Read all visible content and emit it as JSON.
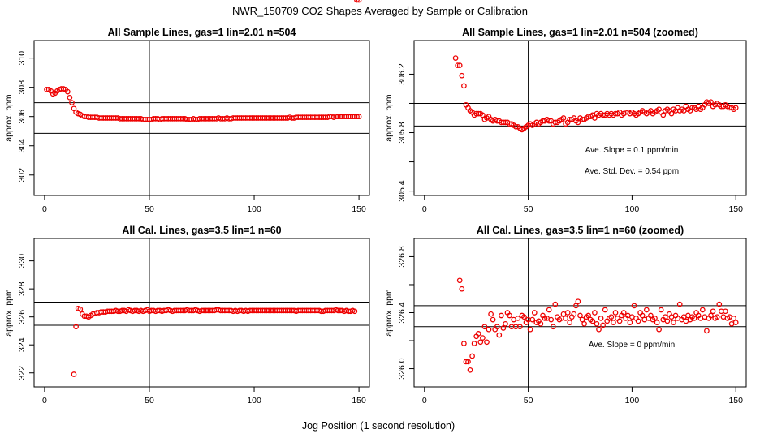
{
  "figure": {
    "title": "NWR_150709  CO2 Shapes Averaged by Sample or Calibration",
    "xlabel": "Jog Position (1 second resolution)"
  },
  "chart_data": [
    {
      "id": "p1",
      "type": "scatter",
      "title": "All Sample Lines, gas=1 lin=2.01 n=504",
      "ylabel": "approx. ppm",
      "xlim": [
        -5,
        155
      ],
      "ylim": [
        300.6,
        311.2
      ],
      "xticks": [
        0,
        50,
        100,
        150
      ],
      "yticks": [
        302,
        304,
        306,
        308,
        310
      ],
      "vline": 50,
      "hlines": [
        306.95,
        304.85
      ],
      "annotations": [],
      "points_x": [
        1,
        2,
        3,
        4,
        5,
        6,
        7,
        8,
        9,
        10,
        11,
        12,
        13,
        14,
        15,
        16,
        17,
        18,
        19,
        20,
        21,
        22,
        23,
        24,
        25,
        26,
        27,
        28,
        29,
        30,
        31,
        32,
        33,
        34,
        35,
        36,
        37,
        38,
        39,
        40,
        41,
        42,
        43,
        44,
        45,
        46,
        47,
        48,
        49,
        50,
        51,
        52,
        53,
        54,
        55,
        56,
        57,
        58,
        59,
        60,
        61,
        62,
        63,
        64,
        65,
        66,
        67,
        68,
        69,
        70,
        71,
        72,
        73,
        74,
        75,
        76,
        77,
        78,
        79,
        80,
        81,
        82,
        83,
        84,
        85,
        86,
        87,
        88,
        89,
        90,
        91,
        92,
        93,
        94,
        95,
        96,
        97,
        98,
        99,
        100,
        101,
        102,
        103,
        104,
        105,
        106,
        107,
        108,
        109,
        110,
        111,
        112,
        113,
        114,
        115,
        116,
        117,
        118,
        119,
        120,
        121,
        122,
        123,
        124,
        125,
        126,
        127,
        128,
        129,
        130,
        131,
        132,
        133,
        134,
        135,
        136,
        137,
        138,
        139,
        140,
        141,
        142,
        143,
        144,
        145,
        146,
        147,
        148,
        149,
        150
      ],
      "points_y": [
        307.85,
        307.85,
        307.75,
        307.55,
        307.6,
        307.75,
        307.85,
        307.9,
        307.9,
        307.85,
        307.7,
        307.3,
        306.95,
        306.55,
        306.3,
        306.2,
        306.15,
        306.05,
        306,
        306,
        305.95,
        305.95,
        305.95,
        305.95,
        305.95,
        305.9,
        305.9,
        305.9,
        305.9,
        305.9,
        305.9,
        305.9,
        305.9,
        305.9,
        305.9,
        305.85,
        305.85,
        305.85,
        305.85,
        305.85,
        305.85,
        305.85,
        305.85,
        305.85,
        305.85,
        305.85,
        305.8,
        305.8,
        305.8,
        305.8,
        305.8,
        305.85,
        305.85,
        305.85,
        305.8,
        305.85,
        305.85,
        305.85,
        305.85,
        305.85,
        305.85,
        305.85,
        305.85,
        305.85,
        305.85,
        305.85,
        305.85,
        305.8,
        305.8,
        305.8,
        305.85,
        305.8,
        305.8,
        305.85,
        305.85,
        305.85,
        305.85,
        305.85,
        305.85,
        305.85,
        305.85,
        305.85,
        305.9,
        305.85,
        305.85,
        305.85,
        305.9,
        305.85,
        305.85,
        305.9,
        305.9,
        305.9,
        305.9,
        305.9,
        305.9,
        305.9,
        305.9,
        305.9,
        305.9,
        305.9,
        305.9,
        305.9,
        305.9,
        305.9,
        305.9,
        305.9,
        305.9,
        305.9,
        305.9,
        305.9,
        305.9,
        305.9,
        305.9,
        305.9,
        305.9,
        305.9,
        305.95,
        305.9,
        305.9,
        305.95,
        305.95,
        305.95,
        305.95,
        305.95,
        305.95,
        305.95,
        305.95,
        305.95,
        305.95,
        305.95,
        305.95,
        305.95,
        305.95,
        305.95,
        305.95,
        306,
        306,
        305.95,
        306,
        306,
        306,
        306,
        306,
        306,
        306,
        306,
        306,
        306,
        306,
        306
      ]
    },
    {
      "id": "p2",
      "type": "scatter",
      "title": "All Sample Lines, gas=1 lin=2.01 n=504 (zoomed)",
      "ylabel": "approx. ppm",
      "xlim": [
        -5,
        155
      ],
      "ylim": [
        305.37,
        306.43
      ],
      "xticks": [
        0,
        50,
        100,
        150
      ],
      "yticks": [
        305.4,
        305.6,
        305.8,
        306.0,
        306.2
      ],
      "ytick_labels": [
        "305.4",
        "",
        "305.8",
        "",
        "306.2"
      ],
      "vline": 50,
      "hlines": [
        306.0,
        305.845
      ],
      "annotations": [
        "Ave. Slope = 0.1  ppm/min",
        "Ave. Std. Dev. =  0.54  ppm"
      ],
      "points_x": [
        15,
        16,
        17,
        18,
        19,
        20,
        21,
        22,
        23,
        24,
        25,
        26,
        27,
        28,
        29,
        30,
        31,
        32,
        33,
        34,
        35,
        36,
        37,
        38,
        39,
        40,
        41,
        42,
        43,
        44,
        45,
        46,
        47,
        48,
        49,
        50,
        51,
        52,
        53,
        54,
        55,
        56,
        57,
        58,
        59,
        60,
        61,
        62,
        63,
        64,
        65,
        66,
        67,
        68,
        69,
        70,
        71,
        72,
        73,
        74,
        75,
        76,
        77,
        78,
        79,
        80,
        81,
        82,
        83,
        84,
        85,
        86,
        87,
        88,
        89,
        90,
        91,
        92,
        93,
        94,
        95,
        96,
        97,
        98,
        99,
        100,
        101,
        102,
        103,
        104,
        105,
        106,
        107,
        108,
        109,
        110,
        111,
        112,
        113,
        114,
        115,
        116,
        117,
        118,
        119,
        120,
        121,
        122,
        123,
        124,
        125,
        126,
        127,
        128,
        129,
        130,
        131,
        132,
        133,
        134,
        135,
        136,
        137,
        138,
        139,
        140,
        141,
        142,
        143,
        144,
        145,
        146,
        147,
        148,
        149,
        150
      ],
      "points_y": [
        306.31,
        306.26,
        306.26,
        306.19,
        306.12,
        305.99,
        305.97,
        305.95,
        305.94,
        305.92,
        305.93,
        305.93,
        305.93,
        305.92,
        305.89,
        305.9,
        305.91,
        305.89,
        305.88,
        305.89,
        305.88,
        305.88,
        305.87,
        305.87,
        305.87,
        305.87,
        305.86,
        305.86,
        305.85,
        305.84,
        305.84,
        305.83,
        305.82,
        305.83,
        305.84,
        305.85,
        305.86,
        305.85,
        305.86,
        305.87,
        305.86,
        305.87,
        305.88,
        305.88,
        305.89,
        305.88,
        305.88,
        305.86,
        305.87,
        305.87,
        305.88,
        305.89,
        305.9,
        305.86,
        305.87,
        305.89,
        305.89,
        305.9,
        305.88,
        305.87,
        305.9,
        305.89,
        305.89,
        305.9,
        305.91,
        305.91,
        305.92,
        305.9,
        305.93,
        305.92,
        305.93,
        305.92,
        305.92,
        305.93,
        305.92,
        305.93,
        305.92,
        305.93,
        305.93,
        305.94,
        305.92,
        305.93,
        305.94,
        305.94,
        305.93,
        305.94,
        305.93,
        305.92,
        305.93,
        305.94,
        305.95,
        305.94,
        305.93,
        305.94,
        305.95,
        305.93,
        305.94,
        305.95,
        305.96,
        305.94,
        305.92,
        305.95,
        305.96,
        305.95,
        305.93,
        305.96,
        305.95,
        305.97,
        305.95,
        305.96,
        305.95,
        305.98,
        305.96,
        305.95,
        305.97,
        305.97,
        305.96,
        305.98,
        305.96,
        305.97,
        305.99,
        306.01,
        306.0,
        306.01,
        305.98,
        305.99,
        306.0,
        305.99,
        305.98,
        305.98,
        305.99,
        305.98,
        305.97,
        305.97,
        305.96,
        305.97
      ]
    },
    {
      "id": "p3",
      "type": "scatter",
      "title": "All Cal. Lines, gas=3.5 lin=1 n=60",
      "ylabel": "approx. ppm",
      "xlim": [
        -5,
        155
      ],
      "ylim": [
        321.0,
        331.6
      ],
      "xticks": [
        0,
        50,
        100,
        150
      ],
      "yticks": [
        322,
        324,
        326,
        328,
        330
      ],
      "vline": 50,
      "hlines": [
        327.05,
        325.4
      ],
      "annotations": [],
      "points_x": [
        14,
        15,
        16,
        17,
        18,
        19,
        20,
        21,
        22,
        23,
        24,
        25,
        26,
        27,
        28,
        29,
        30,
        31,
        32,
        33,
        34,
        35,
        36,
        37,
        38,
        39,
        40,
        41,
        42,
        43,
        44,
        45,
        46,
        47,
        48,
        49,
        50,
        51,
        52,
        53,
        54,
        55,
        56,
        57,
        58,
        59,
        60,
        61,
        62,
        63,
        64,
        65,
        66,
        67,
        68,
        69,
        70,
        71,
        72,
        73,
        74,
        75,
        76,
        77,
        78,
        79,
        80,
        81,
        82,
        83,
        84,
        85,
        86,
        87,
        88,
        89,
        90,
        91,
        92,
        93,
        94,
        95,
        96,
        97,
        98,
        99,
        100,
        101,
        102,
        103,
        104,
        105,
        106,
        107,
        108,
        109,
        110,
        111,
        112,
        113,
        114,
        115,
        116,
        117,
        118,
        119,
        120,
        121,
        122,
        123,
        124,
        125,
        126,
        127,
        128,
        129,
        130,
        131,
        132,
        133,
        134,
        135,
        136,
        137,
        138,
        139,
        140,
        141,
        142,
        143,
        144,
        145,
        146,
        147,
        148,
        149,
        150
      ],
      "points_y": [
        321.9,
        325.3,
        326.6,
        326.55,
        326.2,
        326.05,
        326.05,
        326.0,
        326.1,
        326.2,
        326.25,
        326.3,
        326.3,
        326.35,
        326.35,
        326.35,
        326.4,
        326.4,
        326.4,
        326.4,
        326.45,
        326.4,
        326.4,
        326.45,
        326.45,
        326.4,
        326.5,
        326.45,
        326.4,
        326.45,
        326.45,
        326.4,
        326.45,
        326.4,
        326.45,
        326.5,
        326.4,
        326.45,
        326.45,
        326.4,
        326.45,
        326.45,
        326.4,
        326.45,
        326.45,
        326.5,
        326.45,
        326.4,
        326.45,
        326.45,
        326.45,
        326.45,
        326.45,
        326.45,
        326.5,
        326.45,
        326.45,
        326.45,
        326.5,
        326.45,
        326.4,
        326.45,
        326.45,
        326.45,
        326.45,
        326.45,
        326.45,
        326.45,
        326.5,
        326.5,
        326.45,
        326.45,
        326.45,
        326.45,
        326.45,
        326.45,
        326.4,
        326.45,
        326.4,
        326.45,
        326.45,
        326.4,
        326.45,
        326.4,
        326.45,
        326.45,
        326.45,
        326.45,
        326.45,
        326.45,
        326.45,
        326.45,
        326.45,
        326.45,
        326.45,
        326.45,
        326.45,
        326.45,
        326.45,
        326.45,
        326.45,
        326.45,
        326.45,
        326.45,
        326.45,
        326.45,
        326.4,
        326.45,
        326.45,
        326.45,
        326.45,
        326.45,
        326.45,
        326.45,
        326.45,
        326.45,
        326.45,
        326.45,
        326.4,
        326.4,
        326.45,
        326.45,
        326.45,
        326.45,
        326.45,
        326.5,
        326.45,
        326.45,
        326.45,
        326.4,
        326.45,
        326.4,
        326.4,
        326.45,
        326.4
      ]
    },
    {
      "id": "p4",
      "type": "scatter",
      "title": "All Cal. Lines, gas=3.5 lin=1 n=60 (zoomed)",
      "ylabel": "approx. ppm",
      "xlim": [
        -5,
        155
      ],
      "ylim": [
        325.87,
        326.93
      ],
      "xticks": [
        0,
        50,
        100,
        150
      ],
      "yticks": [
        326.0,
        326.2,
        326.4,
        326.6,
        326.8
      ],
      "ytick_labels": [
        "326.0",
        "",
        "326.4",
        "",
        "326.8"
      ],
      "vline": 50,
      "hlines": [
        326.45,
        326.3
      ],
      "annotations": [
        "Ave. Slope =  0  ppm/min"
      ],
      "points_x": [
        17,
        18,
        19,
        20,
        21,
        22,
        23,
        24,
        25,
        26,
        27,
        28,
        29,
        30,
        31,
        32,
        33,
        34,
        35,
        36,
        37,
        38,
        39,
        40,
        41,
        42,
        43,
        44,
        45,
        46,
        47,
        48,
        49,
        50,
        51,
        52,
        53,
        54,
        55,
        56,
        57,
        58,
        59,
        60,
        61,
        62,
        63,
        64,
        65,
        66,
        67,
        68,
        69,
        70,
        71,
        72,
        73,
        74,
        75,
        76,
        77,
        78,
        79,
        80,
        81,
        82,
        83,
        84,
        85,
        86,
        87,
        88,
        89,
        90,
        91,
        92,
        93,
        94,
        95,
        96,
        97,
        98,
        99,
        100,
        101,
        102,
        103,
        104,
        105,
        106,
        107,
        108,
        109,
        110,
        111,
        112,
        113,
        114,
        115,
        116,
        117,
        118,
        119,
        120,
        121,
        122,
        123,
        124,
        125,
        126,
        127,
        128,
        129,
        130,
        131,
        132,
        133,
        134,
        135,
        136,
        137,
        138,
        139,
        140,
        141,
        142,
        143,
        144,
        145,
        146,
        147,
        148,
        149,
        150
      ],
      "points_y": [
        326.63,
        326.57,
        326.18,
        326.05,
        326.05,
        325.99,
        326.09,
        326.18,
        326.23,
        326.25,
        326.19,
        326.22,
        326.3,
        326.19,
        326.28,
        326.39,
        326.35,
        326.28,
        326.3,
        326.24,
        326.38,
        326.29,
        326.32,
        326.4,
        326.38,
        326.3,
        326.35,
        326.3,
        326.36,
        326.3,
        326.38,
        326.37,
        326.33,
        326.35,
        326.28,
        326.35,
        326.4,
        326.33,
        326.34,
        326.32,
        326.38,
        326.36,
        326.36,
        326.42,
        326.35,
        326.3,
        326.46,
        326.37,
        326.35,
        326.36,
        326.39,
        326.36,
        326.4,
        326.33,
        326.37,
        326.39,
        326.45,
        326.48,
        326.38,
        326.35,
        326.32,
        326.37,
        326.38,
        326.35,
        326.34,
        326.4,
        326.32,
        326.28,
        326.36,
        326.31,
        326.42,
        326.34,
        326.36,
        326.37,
        326.33,
        326.4,
        326.36,
        326.34,
        326.38,
        326.4,
        326.36,
        326.38,
        326.33,
        326.37,
        326.45,
        326.36,
        326.34,
        326.4,
        326.38,
        326.35,
        326.42,
        326.36,
        326.38,
        326.35,
        326.36,
        326.33,
        326.28,
        326.42,
        326.35,
        326.37,
        326.34,
        326.39,
        326.37,
        326.33,
        326.38,
        326.36,
        326.46,
        326.35,
        326.37,
        326.34,
        326.38,
        326.35,
        326.37,
        326.36,
        326.4,
        326.38,
        326.36,
        326.42,
        326.37,
        326.27,
        326.36,
        326.38,
        326.41,
        326.36,
        326.37,
        326.46,
        326.41,
        326.37,
        326.41,
        326.36,
        326.37,
        326.32,
        326.36,
        326.33
      ]
    }
  ]
}
